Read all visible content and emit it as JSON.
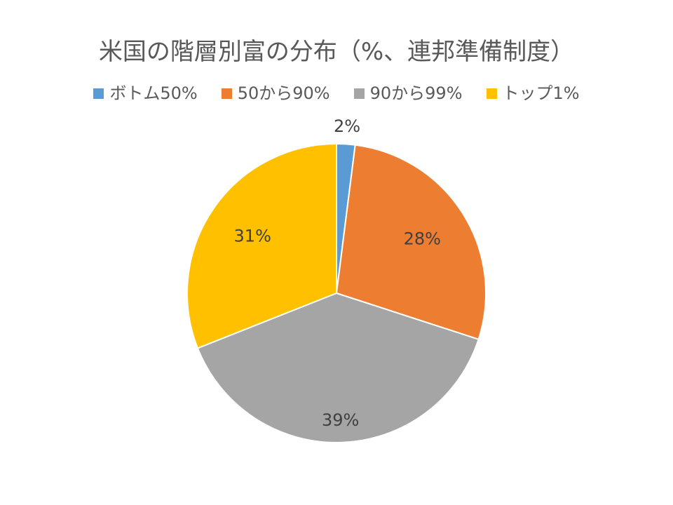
{
  "chart_data": {
    "type": "pie",
    "title": "米国の階層別富の分布（%、連邦準備制度）",
    "categories": [
      "ボトム50%",
      "50から90%",
      "90から99%",
      "トップ1%"
    ],
    "values": [
      2,
      28,
      39,
      31
    ],
    "data_labels": [
      "2%",
      "28%",
      "39%",
      "31%"
    ],
    "colors": [
      "#5B9BD5",
      "#ED7D31",
      "#A5A5A5",
      "#FFC000"
    ],
    "legend": {
      "placement": "top",
      "entries": [
        "ボトム50%",
        "50から90%",
        "90から99%",
        "トップ1%"
      ]
    }
  }
}
